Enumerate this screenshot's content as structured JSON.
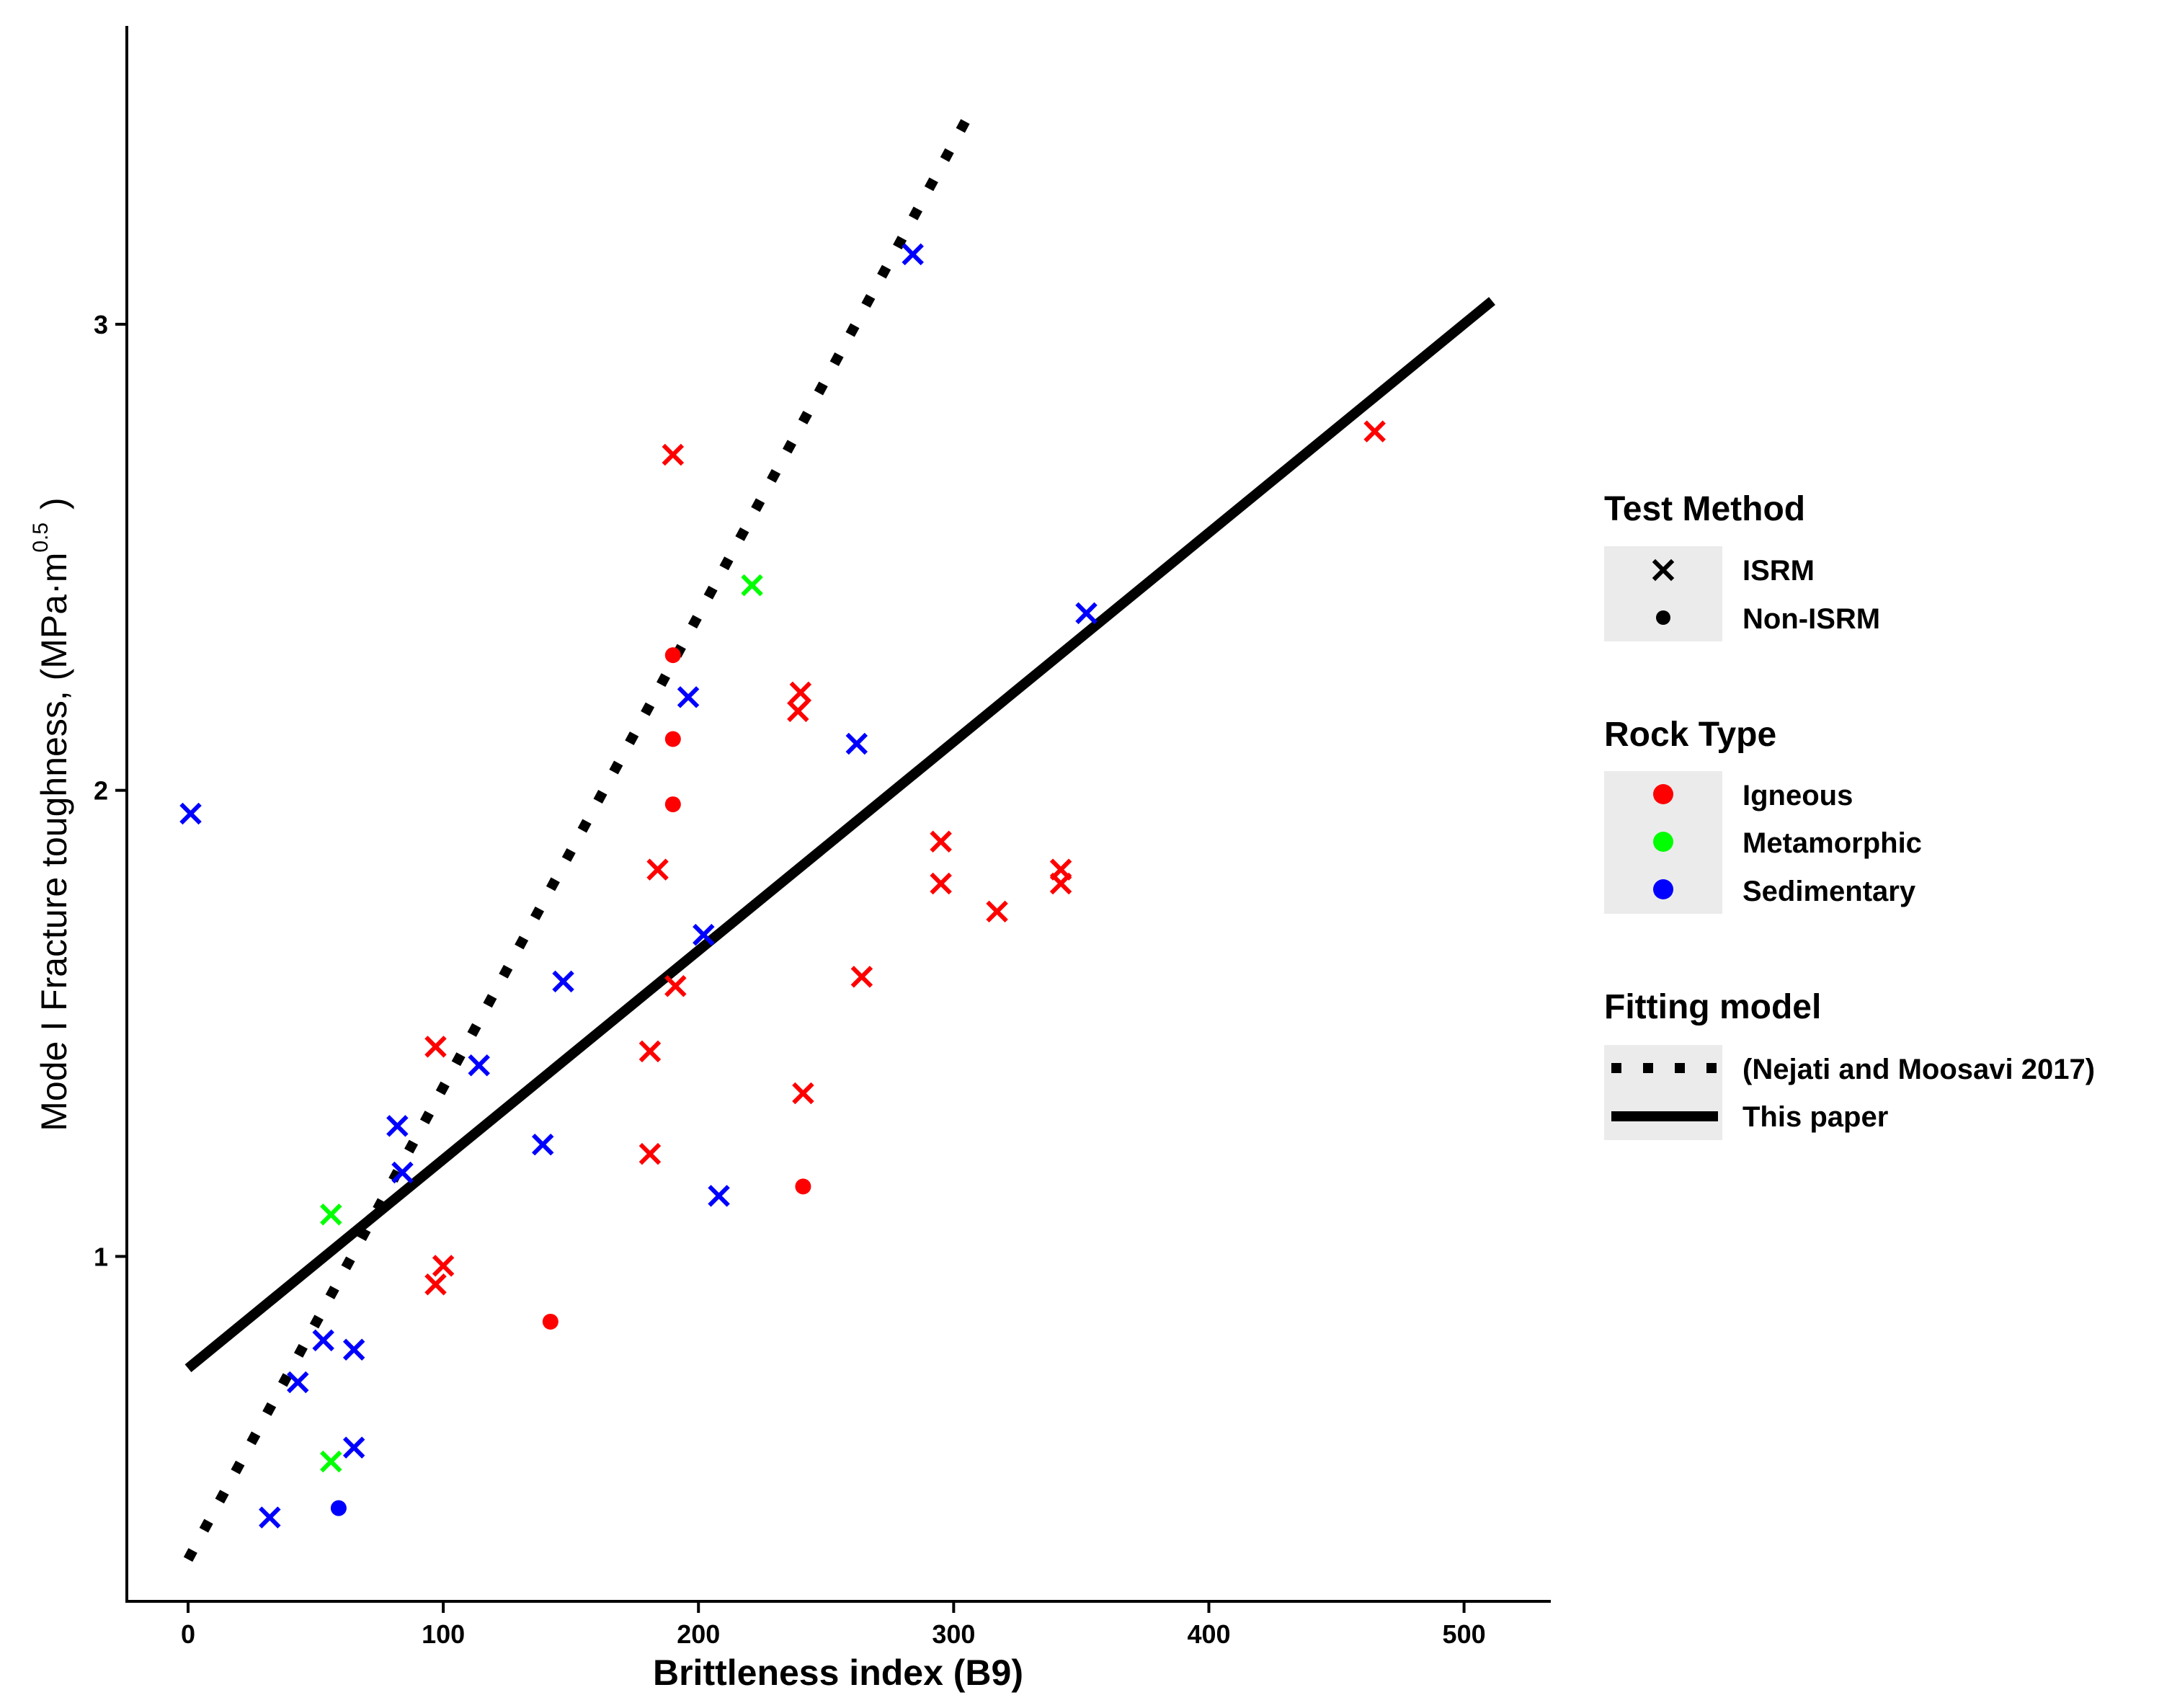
{
  "chart_data": {
    "type": "scatter",
    "xlabel": "Brittleness index (B9)",
    "ylabel_prefix": "Mode I Fracture toughness, (MPa·m",
    "ylabel_exponent": "0.5",
    "ylabel_suffix": ")",
    "xlim": [
      -24,
      534
    ],
    "ylim": [
      0.26,
      3.64
    ],
    "x_ticks": [
      0,
      100,
      200,
      300,
      400,
      500
    ],
    "y_ticks": [
      1,
      2,
      3
    ],
    "grid": false,
    "legend": {
      "placement": "right",
      "test_method": {
        "title": "Test Method",
        "items": [
          {
            "key": "isrm",
            "label": "ISRM",
            "marker": "x"
          },
          {
            "key": "non_isrm",
            "label": "Non-ISRM",
            "marker": "dot"
          }
        ]
      },
      "rock_type": {
        "title": "Rock Type",
        "items": [
          {
            "key": "igneous",
            "label": "Igneous",
            "color": "#ff0000"
          },
          {
            "key": "metamorphic",
            "label": "Metamorphic",
            "color": "#00ff00"
          },
          {
            "key": "sedimentary",
            "label": "Sedimentary",
            "color": "#0000ff"
          }
        ]
      },
      "fitting_model": {
        "title": "Fitting model",
        "items": [
          {
            "key": "nejati",
            "label": "(Nejati and Moosavi 2017)",
            "style": "dotted"
          },
          {
            "key": "this_paper",
            "label": "This paper",
            "style": "solid"
          }
        ]
      }
    },
    "lines": [
      {
        "name": "(Nejati and Moosavi 2017)",
        "style": "dotted",
        "x": [
          0,
          308
        ],
        "y": [
          0.35,
          3.47
        ]
      },
      {
        "name": "This paper",
        "style": "solid",
        "x": [
          0,
          511
        ],
        "y": [
          0.76,
          3.05
        ]
      }
    ],
    "points": [
      {
        "x": 1,
        "y": 1.95,
        "rock": "sedimentary",
        "method": "isrm"
      },
      {
        "x": 32,
        "y": 0.44,
        "rock": "sedimentary",
        "method": "isrm"
      },
      {
        "x": 43,
        "y": 0.73,
        "rock": "sedimentary",
        "method": "isrm"
      },
      {
        "x": 53,
        "y": 0.82,
        "rock": "sedimentary",
        "method": "isrm"
      },
      {
        "x": 65,
        "y": 0.8,
        "rock": "sedimentary",
        "method": "isrm"
      },
      {
        "x": 65,
        "y": 0.59,
        "rock": "sedimentary",
        "method": "isrm"
      },
      {
        "x": 59,
        "y": 0.46,
        "rock": "sedimentary",
        "method": "non_isrm"
      },
      {
        "x": 56,
        "y": 1.09,
        "rock": "metamorphic",
        "method": "isrm"
      },
      {
        "x": 56,
        "y": 0.56,
        "rock": "metamorphic",
        "method": "isrm"
      },
      {
        "x": 82,
        "y": 1.28,
        "rock": "sedimentary",
        "method": "isrm"
      },
      {
        "x": 84,
        "y": 1.18,
        "rock": "sedimentary",
        "method": "isrm"
      },
      {
        "x": 97,
        "y": 1.45,
        "rock": "igneous",
        "method": "isrm"
      },
      {
        "x": 97,
        "y": 0.94,
        "rock": "igneous",
        "method": "isrm"
      },
      {
        "x": 100,
        "y": 0.98,
        "rock": "igneous",
        "method": "isrm"
      },
      {
        "x": 114,
        "y": 1.41,
        "rock": "sedimentary",
        "method": "isrm"
      },
      {
        "x": 139,
        "y": 1.24,
        "rock": "sedimentary",
        "method": "isrm"
      },
      {
        "x": 142,
        "y": 0.86,
        "rock": "igneous",
        "method": "non_isrm"
      },
      {
        "x": 147,
        "y": 1.59,
        "rock": "sedimentary",
        "method": "isrm"
      },
      {
        "x": 181,
        "y": 1.44,
        "rock": "igneous",
        "method": "isrm"
      },
      {
        "x": 181,
        "y": 1.22,
        "rock": "igneous",
        "method": "isrm"
      },
      {
        "x": 184,
        "y": 1.83,
        "rock": "igneous",
        "method": "isrm"
      },
      {
        "x": 190,
        "y": 2.72,
        "rock": "igneous",
        "method": "isrm"
      },
      {
        "x": 190,
        "y": 2.29,
        "rock": "igneous",
        "method": "non_isrm"
      },
      {
        "x": 190,
        "y": 2.11,
        "rock": "igneous",
        "method": "non_isrm"
      },
      {
        "x": 190,
        "y": 1.97,
        "rock": "igneous",
        "method": "non_isrm"
      },
      {
        "x": 191,
        "y": 1.58,
        "rock": "igneous",
        "method": "isrm"
      },
      {
        "x": 196,
        "y": 2.2,
        "rock": "sedimentary",
        "method": "isrm"
      },
      {
        "x": 202,
        "y": 1.69,
        "rock": "sedimentary",
        "method": "isrm"
      },
      {
        "x": 208,
        "y": 1.13,
        "rock": "sedimentary",
        "method": "isrm"
      },
      {
        "x": 221,
        "y": 2.44,
        "rock": "metamorphic",
        "method": "isrm"
      },
      {
        "x": 240,
        "y": 2.21,
        "rock": "igneous",
        "method": "isrm"
      },
      {
        "x": 239,
        "y": 2.17,
        "rock": "igneous",
        "method": "isrm"
      },
      {
        "x": 241,
        "y": 1.35,
        "rock": "igneous",
        "method": "isrm"
      },
      {
        "x": 241,
        "y": 1.15,
        "rock": "igneous",
        "method": "non_isrm"
      },
      {
        "x": 262,
        "y": 2.1,
        "rock": "sedimentary",
        "method": "isrm"
      },
      {
        "x": 264,
        "y": 1.6,
        "rock": "igneous",
        "method": "isrm"
      },
      {
        "x": 284,
        "y": 3.15,
        "rock": "sedimentary",
        "method": "isrm"
      },
      {
        "x": 295,
        "y": 1.89,
        "rock": "igneous",
        "method": "isrm"
      },
      {
        "x": 295,
        "y": 1.8,
        "rock": "igneous",
        "method": "isrm"
      },
      {
        "x": 317,
        "y": 1.74,
        "rock": "igneous",
        "method": "isrm"
      },
      {
        "x": 342,
        "y": 1.83,
        "rock": "igneous",
        "method": "isrm"
      },
      {
        "x": 342,
        "y": 1.8,
        "rock": "igneous",
        "method": "isrm"
      },
      {
        "x": 352,
        "y": 2.38,
        "rock": "sedimentary",
        "method": "isrm"
      },
      {
        "x": 465,
        "y": 2.77,
        "rock": "igneous",
        "method": "isrm"
      }
    ]
  }
}
